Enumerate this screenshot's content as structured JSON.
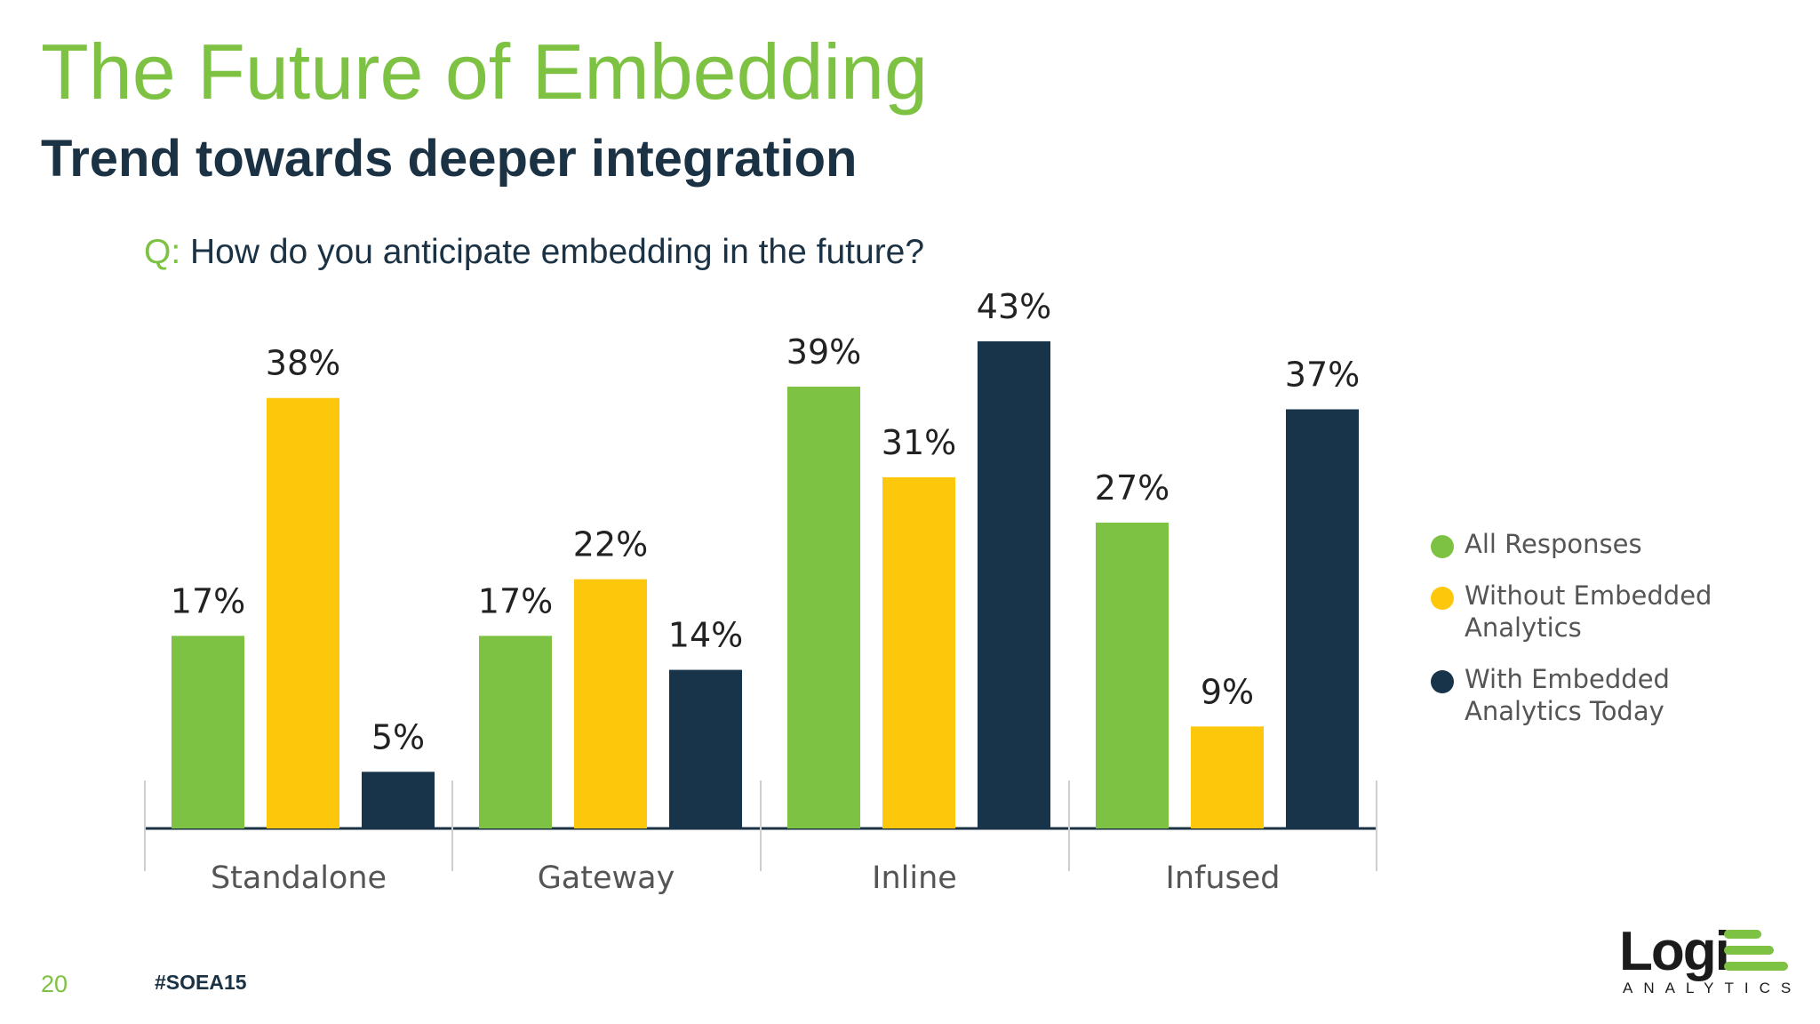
{
  "slide": {
    "title": "The Future of Embedding",
    "subtitle": "Trend towards deeper integration",
    "question_prefix": "Q:",
    "question_text": "How do you anticipate embedding in the future?",
    "page_number": "20",
    "hashtag": "#SOEA15"
  },
  "logo": {
    "word": "Logi",
    "sub": "ANALYTICS"
  },
  "colors": {
    "green": "#7dc242",
    "yellow": "#fdc70c",
    "navy": "#17344a"
  },
  "chart_data": {
    "type": "bar",
    "title": "How do you anticipate embedding in the future?",
    "categories": [
      "Standalone",
      "Gateway",
      "Inline",
      "Infused"
    ],
    "series": [
      {
        "name": "All Responses",
        "color": "#7dc242",
        "values": [
          17,
          17,
          39,
          27
        ],
        "labels": [
          "17%",
          "17%",
          "39%",
          "27%"
        ]
      },
      {
        "name": "Without Embedded Analytics",
        "color": "#fdc70c",
        "values": [
          38,
          22,
          31,
          9
        ],
        "labels": [
          "38%",
          "22%",
          "31%",
          "9%"
        ]
      },
      {
        "name": "With Embedded Analytics Today",
        "color": "#17344a",
        "values": [
          5,
          14,
          43,
          37
        ],
        "labels": [
          "5%",
          "14%",
          "43%",
          "37%"
        ]
      }
    ],
    "ylim": [
      0,
      43
    ],
    "xlabel": "",
    "ylabel": "",
    "grid": false,
    "legend_position": "right"
  }
}
